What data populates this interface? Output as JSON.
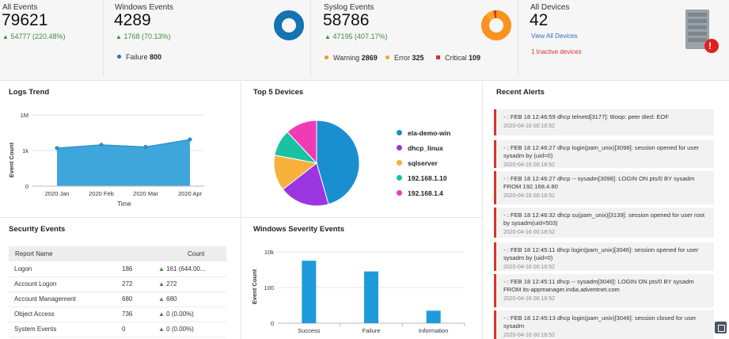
{
  "stats": {
    "all_events": {
      "title": "All Events",
      "value": "79621",
      "change": "54777 (220.48%)"
    },
    "windows_events": {
      "title": "Windows Events",
      "value": "4289",
      "change": "1768 (70.13%)",
      "legend": [
        {
          "label": "Failure",
          "value": "800",
          "color": "#1f77b4"
        }
      ]
    },
    "syslog_events": {
      "title": "Syslog Events",
      "value": "58786",
      "change": "47195 (407.17%)",
      "legend": [
        {
          "label": "Warning",
          "value": "2869",
          "color": "#f7931e"
        },
        {
          "label": "Error",
          "value": "325",
          "color": "#f5a623"
        },
        {
          "label": "Critical",
          "value": "109",
          "color": "#d9322e"
        }
      ]
    },
    "all_devices": {
      "title": "All Devices",
      "value": "42",
      "view_all": "View All Devices",
      "inactive": "1 Inactive devices",
      "alert_mark": "!"
    }
  },
  "panels": {
    "logs_trend": "Logs Trend",
    "top_devices": "Top 5 Devices",
    "recent_alerts": "Recent Alerts",
    "security_events": "Security Events",
    "windows_severity": "Windows Severity Events"
  },
  "security_table": {
    "headers": [
      "Report Name",
      "Count"
    ],
    "rows": [
      {
        "name": "Logon",
        "count": "186",
        "change": "161 (644.00..."
      },
      {
        "name": "Account Logon",
        "count": "272",
        "change": "272"
      },
      {
        "name": "Account Management",
        "count": "680",
        "change": "680"
      },
      {
        "name": "Object Access",
        "count": "736",
        "change": "0 (0.00%)"
      },
      {
        "name": "System Events",
        "count": "0",
        "change": "0 (0.00%)"
      }
    ]
  },
  "alerts": [
    {
      "text": "- : FEB 18 12:46:59 dhcp telnetd[3177]: ttloop: peer died: EOF",
      "time": "2020-04-16 00:18:52"
    },
    {
      "text": "- : FEB 18 12:46:27 dhcp login(pam_unix)[3098]: session opened for user sysadm by (uid=0)",
      "time": "2020-04-16 00:18:52"
    },
    {
      "text": "- : FEB 18 12:46:27 dhcp -- sysadm[3098]: LOGIN ON pts/0 BY sysadm FROM 192.168.4.80",
      "time": "2020-04-16 00:18:52"
    },
    {
      "text": "- : FEB 18 12:46:32 dhcp su(pam_unix)[3139]: session opened for user root by sysadm(uid=503)",
      "time": "2020-04-16 00:18:52"
    },
    {
      "text": "- : FEB 18 12:45:11 dhcp login(pam_unix)[3046]: session opened for user sysadm by (uid=0)",
      "time": "2020-04-16 00:18:52"
    },
    {
      "text": "- : FEB 18 12:45:11 dhcp -- sysadm[3046]: LOGIN ON pts/0 BY sysadm FROM its-appmanager.india.adventnet.com",
      "time": "2020-04-16 00:18:52"
    },
    {
      "text": "- : FEB 18 12:45:13 dhcp login(pam_unix)[3046]: session closed for user sysadm",
      "time": "2020-04-16 00:18:52"
    }
  ],
  "chart_data": [
    {
      "type": "area",
      "title": "Logs Trend",
      "xlabel": "Time",
      "ylabel": "Event Count",
      "scale": "log",
      "y_tick_labels": [
        "1M",
        "1k",
        "0"
      ],
      "categories": [
        "2020 Jan",
        "2020 Feb",
        "2020 Mar",
        "2020 Apr"
      ],
      "values": [
        1600,
        3000,
        2000,
        8500
      ],
      "color": "#3fa6dc"
    },
    {
      "type": "pie",
      "title": "Top 5 Devices",
      "slices": [
        {
          "name": "ela-demo-win",
          "value": 45.5,
          "color": "#1a8fd0"
        },
        {
          "name": "dhcp_linux",
          "value": 19.0,
          "color": "#9b35e0"
        },
        {
          "name": "sqlserver",
          "value": 13.5,
          "color": "#f7b03c"
        },
        {
          "name": "192.168.1.10",
          "value": 10.0,
          "color": "#19c2a2"
        },
        {
          "name": "192.168.1.4",
          "value": 12.0,
          "color": "#f03cb4"
        }
      ]
    },
    {
      "type": "bar",
      "title": "Windows Severity Events",
      "ylabel": "Event Count",
      "scale": "log",
      "y_tick_labels": [
        "10k",
        "100",
        "0"
      ],
      "categories": [
        "Success",
        "Failure",
        "Information"
      ],
      "values": [
        3200,
        800,
        5
      ],
      "color": "#1f9bdb"
    },
    {
      "type": "donut",
      "title": "Windows Events",
      "slices": [
        {
          "name": "Failure",
          "value": 800,
          "color": "#1373b3"
        }
      ]
    },
    {
      "type": "donut",
      "title": "Syslog Events",
      "slices": [
        {
          "name": "Warning",
          "value": 2869,
          "color": "#f7931e"
        },
        {
          "name": "Error",
          "value": 325,
          "color": "#f5a623"
        },
        {
          "name": "Critical",
          "value": 109,
          "color": "#d9322e"
        }
      ]
    }
  ]
}
